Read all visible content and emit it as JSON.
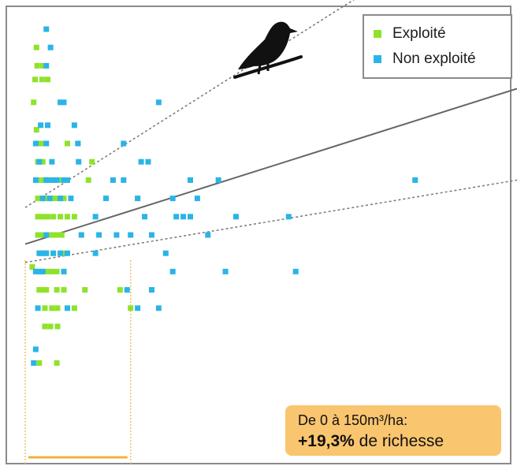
{
  "chart_data": {
    "type": "scatter",
    "title": "",
    "xlabel": "",
    "ylabel": "",
    "xlim": [
      0,
      700
    ],
    "ylim": [
      0,
      100
    ],
    "grid": false,
    "legend_position": "top-right",
    "series": [
      {
        "name": "Exploité",
        "color": "#8fe22a",
        "points": [
          [
            10,
            43
          ],
          [
            12,
            79
          ],
          [
            16,
            73
          ],
          [
            14,
            84
          ],
          [
            16,
            91
          ],
          [
            17,
            87
          ],
          [
            25,
            87
          ],
          [
            24,
            84
          ],
          [
            32,
            84
          ],
          [
            18,
            66
          ],
          [
            20,
            66
          ],
          [
            25,
            66
          ],
          [
            20,
            70
          ],
          [
            24,
            70
          ],
          [
            18,
            62
          ],
          [
            26,
            62
          ],
          [
            31,
            62
          ],
          [
            35,
            62
          ],
          [
            42,
            62
          ],
          [
            48,
            62
          ],
          [
            18,
            58
          ],
          [
            22,
            58
          ],
          [
            26,
            58
          ],
          [
            30,
            58
          ],
          [
            35,
            58
          ],
          [
            40,
            58
          ],
          [
            45,
            58
          ],
          [
            50,
            58
          ],
          [
            55,
            58
          ],
          [
            18,
            54
          ],
          [
            22,
            54
          ],
          [
            28,
            54
          ],
          [
            32,
            54
          ],
          [
            40,
            54
          ],
          [
            50,
            54
          ],
          [
            60,
            54
          ],
          [
            70,
            54
          ],
          [
            18,
            50
          ],
          [
            21,
            50
          ],
          [
            26,
            50
          ],
          [
            30,
            50
          ],
          [
            38,
            50
          ],
          [
            45,
            50
          ],
          [
            52,
            50
          ],
          [
            22,
            46
          ],
          [
            30,
            46
          ],
          [
            40,
            46
          ],
          [
            55,
            46
          ],
          [
            18,
            42
          ],
          [
            24,
            42
          ],
          [
            31,
            42
          ],
          [
            38,
            42
          ],
          [
            45,
            42
          ],
          [
            55,
            42
          ],
          [
            20,
            38
          ],
          [
            25,
            38
          ],
          [
            30,
            38
          ],
          [
            45,
            38
          ],
          [
            55,
            38
          ],
          [
            85,
            38
          ],
          [
            135,
            38
          ],
          [
            28,
            34
          ],
          [
            38,
            34
          ],
          [
            46,
            34
          ],
          [
            70,
            34
          ],
          [
            150,
            34
          ],
          [
            28,
            30
          ],
          [
            36,
            30
          ],
          [
            46,
            30
          ],
          [
            20,
            22
          ],
          [
            45,
            22
          ],
          [
            60,
            70
          ],
          [
            75,
            70
          ],
          [
            90,
            62
          ],
          [
            95,
            66
          ],
          [
            160,
            58
          ]
        ]
      },
      {
        "name": "Non exploité",
        "color": "#2ab4e8",
        "points": [
          [
            30,
            95
          ],
          [
            36,
            91
          ],
          [
            30,
            87
          ],
          [
            50,
            79
          ],
          [
            55,
            79
          ],
          [
            22,
            74
          ],
          [
            32,
            74
          ],
          [
            70,
            74
          ],
          [
            190,
            79
          ],
          [
            15,
            70
          ],
          [
            30,
            70
          ],
          [
            75,
            70
          ],
          [
            140,
            70
          ],
          [
            165,
            66
          ],
          [
            20,
            66
          ],
          [
            38,
            66
          ],
          [
            76,
            66
          ],
          [
            175,
            66
          ],
          [
            15,
            62
          ],
          [
            30,
            62
          ],
          [
            38,
            62
          ],
          [
            45,
            62
          ],
          [
            55,
            62
          ],
          [
            60,
            62
          ],
          [
            125,
            62
          ],
          [
            140,
            62
          ],
          [
            235,
            62
          ],
          [
            275,
            62
          ],
          [
            555,
            62
          ],
          [
            25,
            58
          ],
          [
            35,
            58
          ],
          [
            50,
            58
          ],
          [
            65,
            58
          ],
          [
            115,
            58
          ],
          [
            160,
            58
          ],
          [
            210,
            58
          ],
          [
            245,
            58
          ],
          [
            100,
            54
          ],
          [
            170,
            54
          ],
          [
            215,
            54
          ],
          [
            225,
            54
          ],
          [
            235,
            54
          ],
          [
            300,
            54
          ],
          [
            375,
            54
          ],
          [
            30,
            50
          ],
          [
            80,
            50
          ],
          [
            105,
            50
          ],
          [
            130,
            50
          ],
          [
            150,
            50
          ],
          [
            180,
            50
          ],
          [
            260,
            50
          ],
          [
            20,
            46
          ],
          [
            25,
            46
          ],
          [
            30,
            46
          ],
          [
            40,
            46
          ],
          [
            50,
            46
          ],
          [
            60,
            46
          ],
          [
            100,
            46
          ],
          [
            200,
            46
          ],
          [
            15,
            42
          ],
          [
            20,
            42
          ],
          [
            25,
            42
          ],
          [
            55,
            42
          ],
          [
            210,
            42
          ],
          [
            285,
            42
          ],
          [
            385,
            42
          ],
          [
            145,
            38
          ],
          [
            180,
            38
          ],
          [
            18,
            34
          ],
          [
            60,
            34
          ],
          [
            160,
            34
          ],
          [
            190,
            34
          ],
          [
            15,
            25
          ],
          [
            12,
            22
          ]
        ]
      }
    ],
    "trend_lines": [
      {
        "style": "solid",
        "color": "#666666",
        "from": [
          0,
          48
        ],
        "to": [
          700,
          82
        ]
      },
      {
        "style": "dashed",
        "color": "#777777",
        "from": [
          0,
          56
        ],
        "to": [
          700,
          124
        ]
      },
      {
        "style": "dashed",
        "color": "#777777",
        "from": [
          0,
          44
        ],
        "to": [
          700,
          62
        ]
      }
    ],
    "highlight_range": {
      "x": [
        0,
        150
      ],
      "color": "#f4c06a"
    },
    "annotation": {
      "line1": "De 0 à 150m³/ha:",
      "line2_bold": "+19,3%",
      "line2_rest": " de richesse"
    },
    "legend_items": [
      {
        "label": "Exploité",
        "color": "#8fe22a"
      },
      {
        "label": "Non exploité",
        "color": "#2ab4e8"
      }
    ],
    "icon": "bird-on-branch-icon"
  }
}
